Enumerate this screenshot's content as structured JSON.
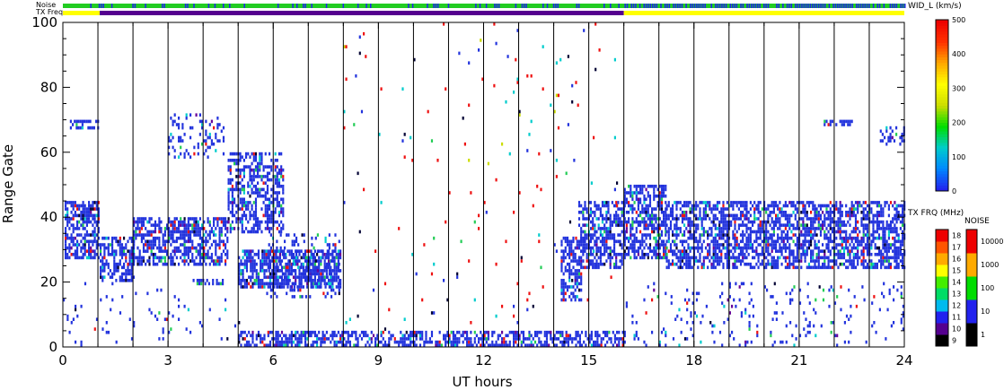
{
  "chart_data": {
    "type": "heatmap",
    "title": "",
    "xlabel": "UT hours",
    "ylabel": "Range Gate",
    "xlim": [
      0,
      24
    ],
    "ylim": [
      0,
      100
    ],
    "x_ticks": [
      "0",
      "3",
      "6",
      "9",
      "12",
      "15",
      "18",
      "21",
      "24"
    ],
    "y_ticks": [
      "0",
      "20",
      "40",
      "60",
      "80",
      "100"
    ],
    "x_tick_values": [
      0,
      3,
      6,
      9,
      12,
      15,
      18,
      21,
      24
    ],
    "y_tick_values": [
      0,
      20,
      40,
      60,
      80,
      100
    ],
    "hour_gridlines": [
      1,
      2,
      3,
      4,
      5,
      6,
      7,
      8,
      9,
      10,
      11,
      12,
      13,
      14,
      15,
      16,
      17,
      18,
      19,
      20,
      21,
      22,
      23
    ],
    "top_bars": [
      {
        "label": "Noise",
        "segments": [
          [
            0,
            24,
            "#22cc22"
          ]
        ],
        "blue_ticks": true
      },
      {
        "label": "TX Freq",
        "segments": [
          [
            0,
            1.05,
            "#ffff00"
          ],
          [
            1.05,
            16,
            "#55008f"
          ],
          [
            16,
            24,
            "#ffff00"
          ]
        ]
      }
    ],
    "colorbars": [
      {
        "title": "WID_L (km/s)",
        "ticks": [
          "0",
          "100",
          "200",
          "300",
          "400",
          "500"
        ],
        "tick_values": [
          0,
          100,
          200,
          300,
          400,
          500
        ],
        "range": [
          0,
          500
        ],
        "colors": [
          "#2222ee",
          "#0088ff",
          "#00cccc",
          "#00dd00",
          "#ccdd00",
          "#ffff00",
          "#ffaa00",
          "#ff3300",
          "#ee0000"
        ]
      },
      {
        "title": "TX FRQ (MHz)",
        "ticks": [
          "9",
          "10",
          "11",
          "12",
          "13",
          "14",
          "15",
          "16",
          "17",
          "18"
        ],
        "range": [
          9,
          18
        ],
        "colors": [
          "#000000",
          "#55008f",
          "#2222ee",
          "#00bbee",
          "#00dd66",
          "#44ee00",
          "#ffff00",
          "#ffaa00",
          "#ff5500",
          "#ee0000"
        ]
      },
      {
        "title": "NOISE",
        "ticks": [
          "1",
          "10",
          "100",
          "1000",
          "10000"
        ],
        "range": [
          1,
          10000
        ],
        "colors": [
          "#000000",
          "#2222ee",
          "#00dd00",
          "#ffaa00",
          "#ee0000"
        ]
      }
    ],
    "scatter_colors": {
      "main": "#2233dd",
      "green": "#22cc55",
      "cyan": "#00cccc",
      "red": "#ee1111",
      "dark": "#000033",
      "purple": "#660099",
      "yellow": "#ccdd00"
    },
    "echo_regions": [
      {
        "x0": 0.05,
        "x1": 1.05,
        "y0": 27,
        "y1": 45,
        "density": 0.65
      },
      {
        "x0": 1.05,
        "x1": 2.0,
        "y0": 20,
        "y1": 34,
        "density": 0.6
      },
      {
        "x0": 2.0,
        "x1": 4.7,
        "y0": 25,
        "y1": 40,
        "density": 0.6
      },
      {
        "x0": 4.7,
        "x1": 6.3,
        "y0": 35,
        "y1": 60,
        "density": 0.5
      },
      {
        "x0": 0.2,
        "x1": 1.0,
        "y0": 67,
        "y1": 70,
        "density": 0.45
      },
      {
        "x0": 3.0,
        "x1": 4.6,
        "y0": 58,
        "y1": 72,
        "density": 0.25
      },
      {
        "x0": 5.0,
        "x1": 7.9,
        "y0": 18,
        "y1": 30,
        "density": 0.7
      },
      {
        "x0": 3.7,
        "x1": 4.6,
        "y0": 19,
        "y1": 21,
        "density": 0.5
      },
      {
        "x0": 5.8,
        "x1": 7.9,
        "y0": 15,
        "y1": 35,
        "density": 0.2
      },
      {
        "x0": 5.0,
        "x1": 16.0,
        "y0": 0,
        "y1": 5,
        "density": 0.55
      },
      {
        "x0": 14.2,
        "x1": 14.8,
        "y0": 14,
        "y1": 34,
        "density": 0.6
      },
      {
        "x0": 14.7,
        "x1": 16.0,
        "y0": 24,
        "y1": 45,
        "density": 0.55
      },
      {
        "x0": 16.0,
        "x1": 17.2,
        "y0": 27,
        "y1": 50,
        "density": 0.6
      },
      {
        "x0": 17.2,
        "x1": 24.0,
        "y0": 24,
        "y1": 45,
        "density": 0.6
      },
      {
        "x0": 21.7,
        "x1": 22.5,
        "y0": 68,
        "y1": 70,
        "density": 0.6
      },
      {
        "x0": 23.3,
        "x1": 24.0,
        "y0": 62,
        "y1": 68,
        "density": 0.4
      },
      {
        "x0": 16.0,
        "x1": 24.0,
        "y0": 0,
        "y1": 20,
        "density": 0.07
      },
      {
        "x0": 0.0,
        "x1": 5.0,
        "y0": 0,
        "y1": 20,
        "density": 0.03
      }
    ],
    "sparse_region": {
      "x0": 8.0,
      "x1": 15.8,
      "y0": 5,
      "y1": 100,
      "density": 0.012
    }
  }
}
